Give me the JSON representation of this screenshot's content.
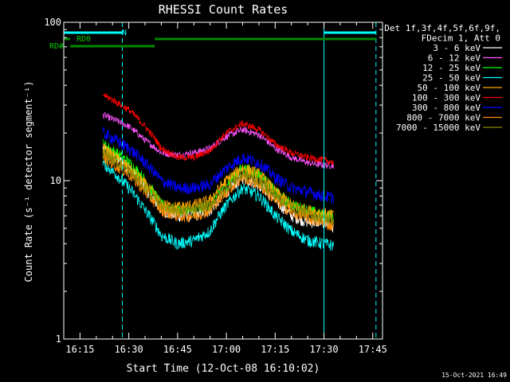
{
  "chart_data": {
    "type": "line",
    "title": "RHESSI Count Rates",
    "xlabel": "Start Time (12-Oct-08 16:10:02)",
    "ylabel": "Count Rate (s⁻¹ detector segment⁻¹)",
    "yscale": "log",
    "ylim": [
      1,
      100
    ],
    "y_ticks": [
      {
        "value": 1,
        "label": "1"
      },
      {
        "value": 10,
        "label": "10"
      },
      {
        "value": 100,
        "label": "100"
      }
    ],
    "xlim": [
      "16:10",
      "17:48"
    ],
    "x_ticks": [
      "16:15",
      "16:30",
      "16:45",
      "17:00",
      "17:15",
      "17:30",
      "17:45"
    ],
    "grid": false,
    "legend_placement": "right",
    "legend_header": [
      "Det 1f,3f,4f,5f,6f,9f,",
      "FDecim 1, Att 0"
    ],
    "data_start": "16:22",
    "data_end": "17:33",
    "series": [
      {
        "name": "3 - 6 keV",
        "color": "#ffffff",
        "x": [
          "16:22",
          "16:30",
          "16:35",
          "16:40",
          "16:45",
          "16:50",
          "16:55",
          "17:00",
          "17:05",
          "17:10",
          "17:15",
          "17:20",
          "17:25",
          "17:30",
          "17:33"
        ],
        "y": [
          16,
          12,
          9,
          6.5,
          6,
          6,
          6.5,
          8.5,
          10.5,
          9.5,
          7.5,
          6,
          5.5,
          5.5,
          5
        ]
      },
      {
        "name": "6 - 12 keV",
        "color": "#ff55ff",
        "x": [
          "16:22",
          "16:30",
          "16:35",
          "16:40",
          "16:45",
          "16:50",
          "16:55",
          "17:00",
          "17:05",
          "17:10",
          "17:15",
          "17:20",
          "17:25",
          "17:30",
          "17:33"
        ],
        "y": [
          26,
          22,
          18,
          15,
          14.5,
          15,
          16,
          19,
          21,
          19.5,
          16,
          14,
          13,
          12.5,
          12.5
        ]
      },
      {
        "name": "12 - 25 keV",
        "color": "#00ff00",
        "x": [
          "16:22",
          "16:30",
          "16:35",
          "16:40",
          "16:45",
          "16:50",
          "16:55",
          "17:00",
          "17:05",
          "17:10",
          "17:15",
          "17:20",
          "17:25",
          "17:30",
          "17:33"
        ],
        "y": [
          17,
          13,
          10,
          7,
          6.5,
          6.5,
          7,
          9.5,
          12,
          11,
          8.5,
          7,
          6.5,
          6,
          6
        ]
      },
      {
        "name": "25 - 50 keV",
        "color": "#00ffff",
        "x": [
          "16:22",
          "16:30",
          "16:35",
          "16:40",
          "16:45",
          "16:50",
          "16:55",
          "17:00",
          "17:05",
          "17:10",
          "17:15",
          "17:20",
          "17:25",
          "17:30",
          "17:33"
        ],
        "y": [
          13,
          9,
          6.5,
          4.5,
          4,
          4.2,
          4.8,
          7,
          9,
          8,
          6,
          4.8,
          4.2,
          4,
          3.9
        ]
      },
      {
        "name": "50 - 100 keV",
        "color": "#ffaa00",
        "x": [
          "16:22",
          "16:30",
          "16:35",
          "16:40",
          "16:45",
          "16:50",
          "16:55",
          "17:00",
          "17:05",
          "17:10",
          "17:15",
          "17:20",
          "17:25",
          "17:30",
          "17:33"
        ],
        "y": [
          16,
          12,
          9.5,
          7,
          6.8,
          7,
          7.5,
          10,
          12,
          11,
          8.5,
          7,
          6.5,
          6.2,
          6
        ]
      },
      {
        "name": "100 - 300 keV",
        "color": "#ff0000",
        "x": [
          "16:22",
          "16:30",
          "16:35",
          "16:40",
          "16:45",
          "16:50",
          "16:55",
          "17:00",
          "17:05",
          "17:10",
          "17:15",
          "17:20",
          "17:25",
          "17:30",
          "17:33"
        ],
        "y": [
          35,
          28,
          22,
          16,
          14,
          14,
          15.5,
          20,
          23,
          21,
          17,
          15,
          14,
          13.5,
          13
        ]
      },
      {
        "name": "300 - 800 keV",
        "color": "#0000ff",
        "x": [
          "16:22",
          "16:30",
          "16:35",
          "16:40",
          "16:45",
          "16:50",
          "16:55",
          "17:00",
          "17:05",
          "17:10",
          "17:15",
          "17:20",
          "17:25",
          "17:30",
          "17:33"
        ],
        "y": [
          20,
          16,
          13,
          10,
          9,
          9,
          9.5,
          12,
          14,
          13,
          10.5,
          9,
          8.5,
          8,
          7.8
        ]
      },
      {
        "name": "800 - 7000 keV",
        "color": "#ff8800",
        "x": [
          "16:22",
          "16:30",
          "16:35",
          "16:40",
          "16:45",
          "16:50",
          "16:55",
          "17:00",
          "17:05",
          "17:10",
          "17:15",
          "17:20",
          "17:25",
          "17:30",
          "17:33"
        ],
        "y": [
          14,
          11,
          8.5,
          6.5,
          6,
          6,
          6.5,
          8.5,
          10.5,
          9.5,
          7.5,
          6.3,
          5.8,
          5.4,
          5.2
        ]
      },
      {
        "name": "7000 - 15000 keV",
        "color": "#888800",
        "x": [
          "16:22",
          "16:30",
          "16:35",
          "16:40",
          "16:45",
          "16:50",
          "16:55",
          "17:00",
          "17:05",
          "17:10",
          "17:15",
          "17:20",
          "17:25",
          "17:30",
          "17:33"
        ],
        "y": [
          15,
          11.5,
          9,
          7,
          6.5,
          6.5,
          7,
          9,
          11,
          10,
          8,
          6.8,
          6.2,
          5.8,
          5.6
        ]
      }
    ],
    "attenuator_bars": [
      {
        "label": "N",
        "color": "#00ffff",
        "segments": [
          [
            "16:10",
            "16:28"
          ],
          [
            "17:30",
            "17:46"
          ]
        ]
      },
      {
        "label": "RD0",
        "color": "#008800",
        "segments": [
          [
            "16:10",
            "16:12"
          ],
          [
            "16:38",
            "17:46"
          ]
        ]
      },
      {
        "label": "RD#",
        "color": "#008800",
        "segments": [
          [
            "16:12",
            "16:38"
          ]
        ]
      }
    ],
    "vertical_lines": [
      {
        "time": "16:28",
        "style": "dashed",
        "color": "#00ffff"
      },
      {
        "time": "17:30",
        "style": "solid",
        "color": "#00ffff"
      },
      {
        "time": "17:46",
        "style": "dashed",
        "color": "#00ffff"
      }
    ]
  },
  "footer": {
    "timestamp": "15-Oct-2021 16:49"
  }
}
